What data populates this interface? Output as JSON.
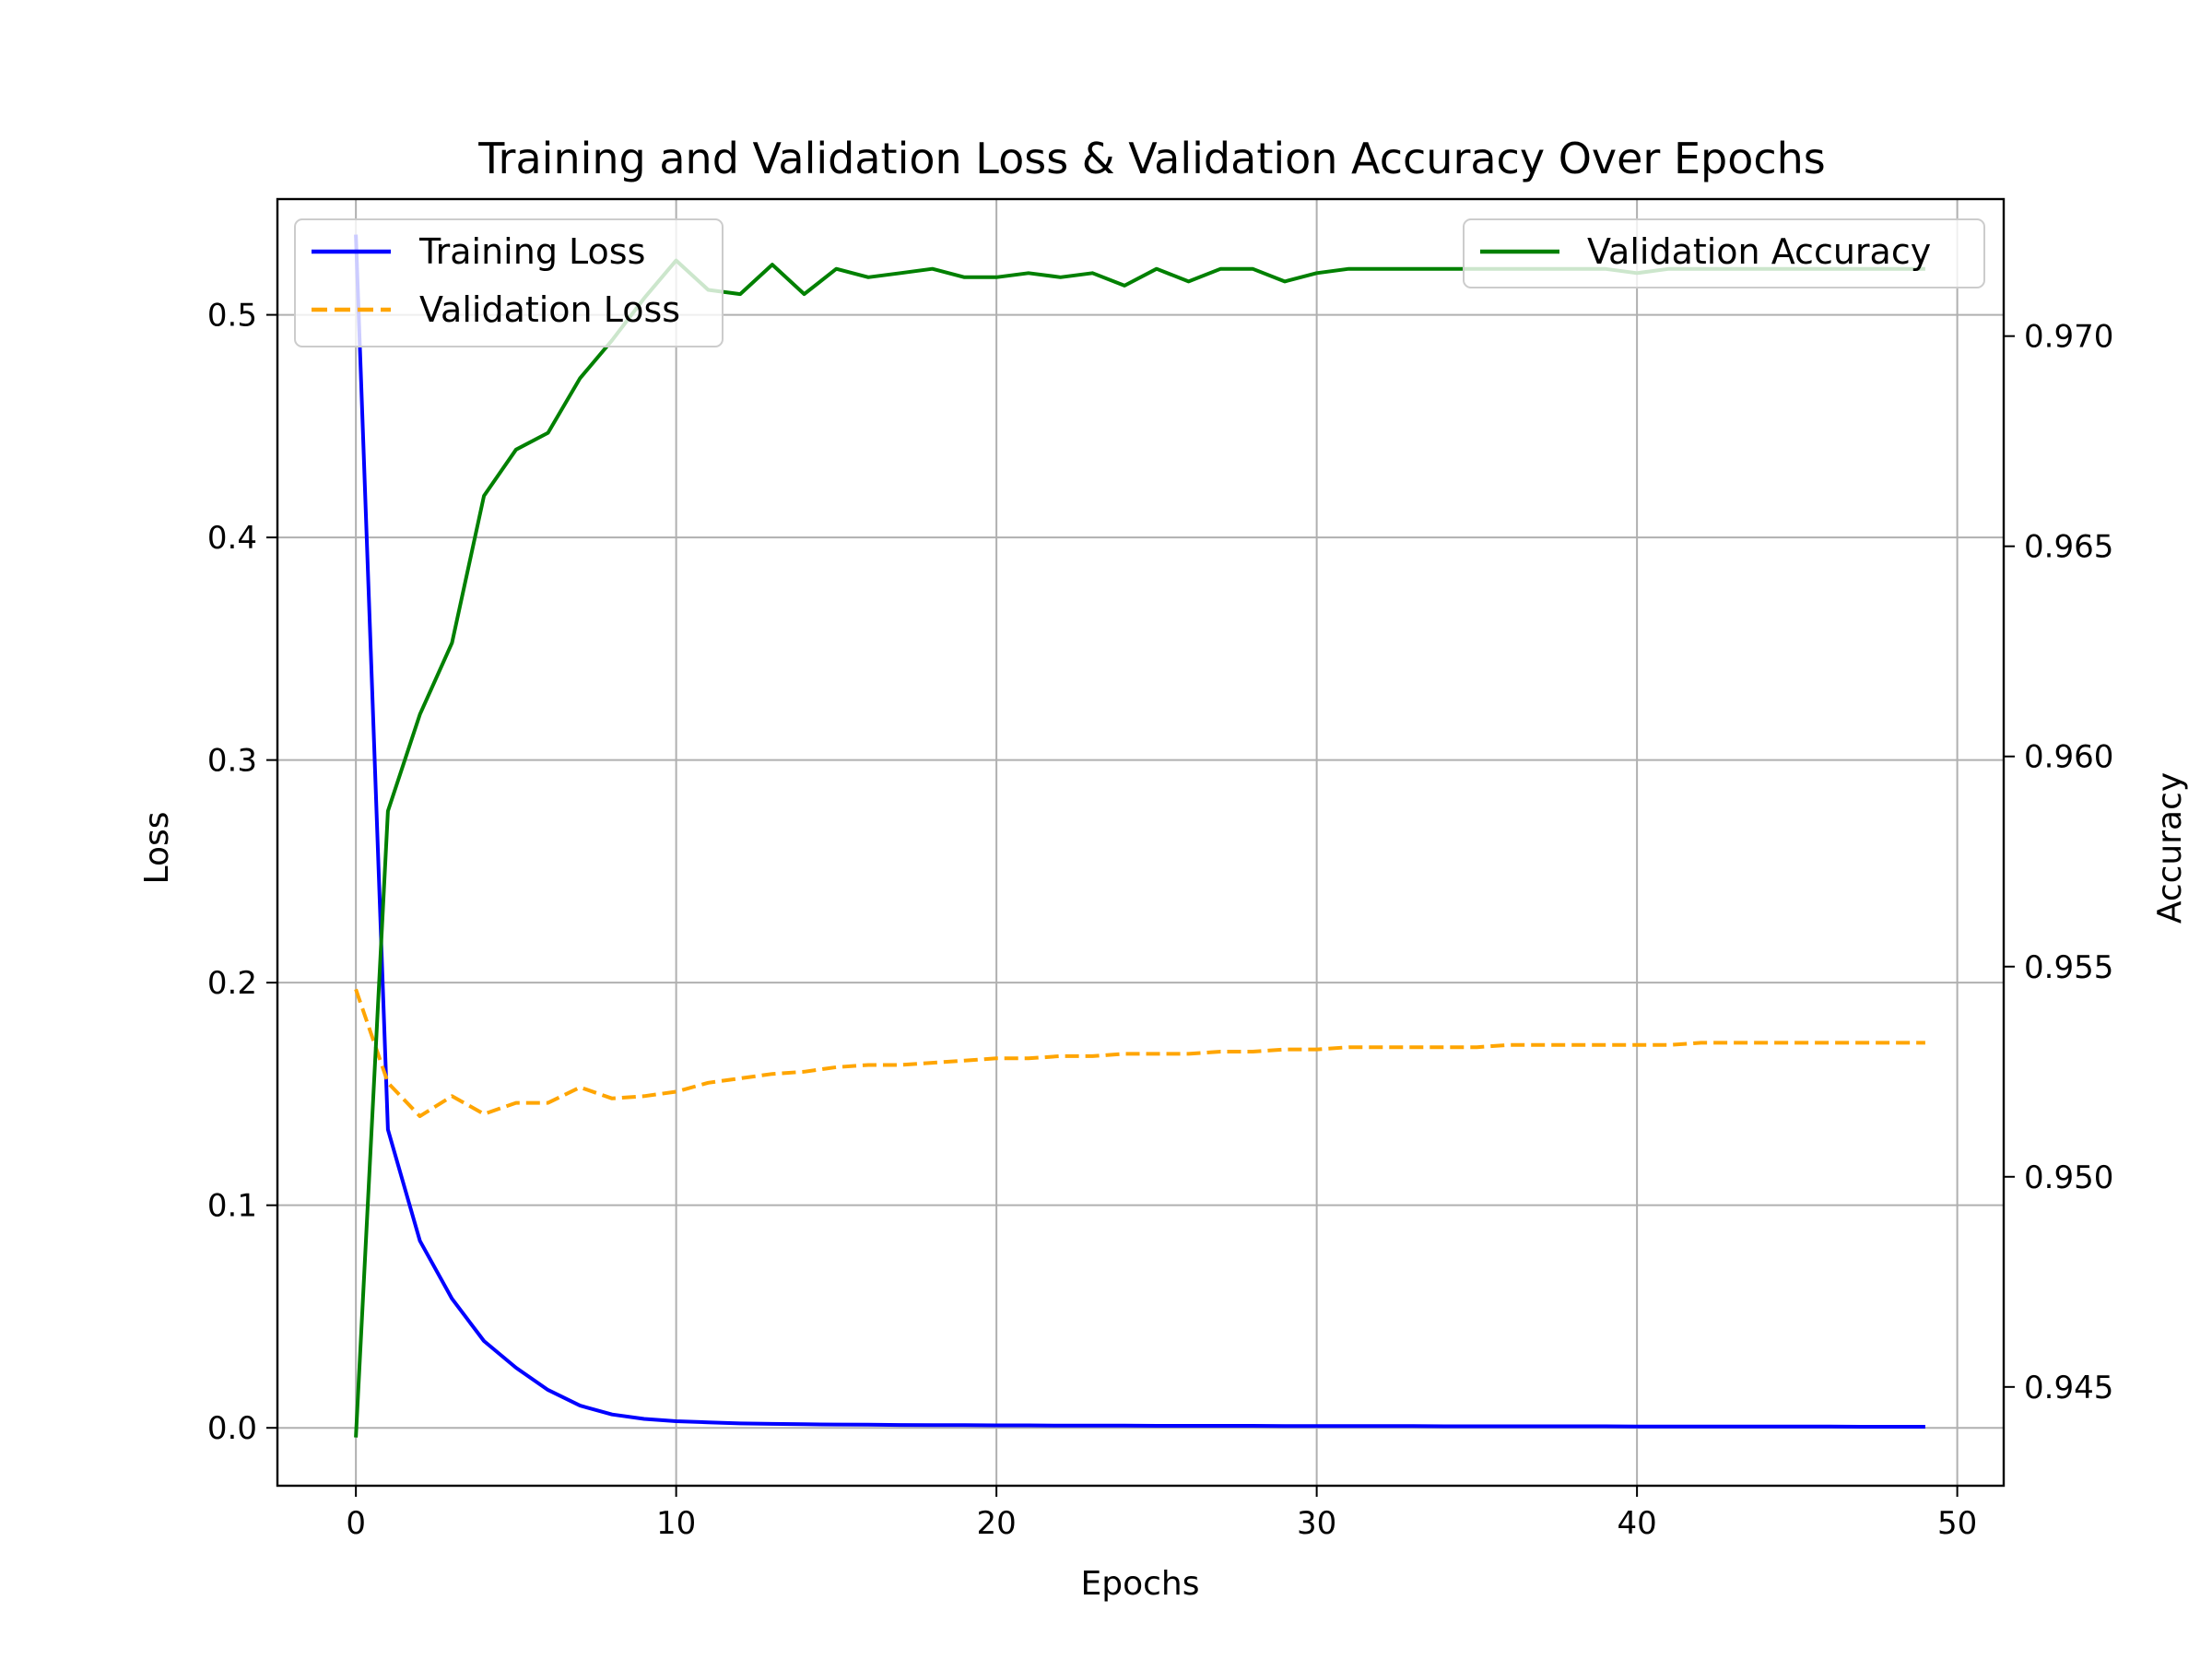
{
  "chart_data": {
    "type": "line",
    "title": "Training and Validation Loss & Validation Accuracy Over Epochs",
    "xlabel": "Epochs",
    "ylabel": "Loss",
    "y2label": "Accuracy",
    "xlim": [
      -2.45,
      51.45
    ],
    "ylim": [
      -0.026,
      0.552
    ],
    "y2lim": [
      0.94265,
      0.97326
    ],
    "xticks": [
      "0",
      "10",
      "20",
      "30",
      "40",
      "50"
    ],
    "yticks": [
      "0.0",
      "0.1",
      "0.2",
      "0.3",
      "0.4",
      "0.5"
    ],
    "y2ticks": [
      "0.945",
      "0.950",
      "0.955",
      "0.960",
      "0.965",
      "0.970"
    ],
    "grid": true,
    "x": [
      0,
      1,
      2,
      3,
      4,
      5,
      6,
      7,
      8,
      9,
      10,
      11,
      12,
      13,
      14,
      15,
      16,
      17,
      18,
      19,
      20,
      21,
      22,
      23,
      24,
      25,
      26,
      27,
      28,
      29,
      30,
      31,
      32,
      33,
      34,
      35,
      36,
      37,
      38,
      39,
      40,
      41,
      42,
      43,
      44,
      45,
      46,
      47,
      48,
      49
    ],
    "series": [
      {
        "name": "Training Loss",
        "axis": "left",
        "color": "#0000ff",
        "style": "solid",
        "values": [
          0.536,
          0.134,
          0.084,
          0.058,
          0.039,
          0.027,
          0.017,
          0.01,
          0.006,
          0.004,
          0.003,
          0.0025,
          0.002,
          0.0018,
          0.0016,
          0.0015,
          0.0014,
          0.0013,
          0.0012,
          0.0012,
          0.0011,
          0.0011,
          0.001,
          0.001,
          0.001,
          0.0009,
          0.0009,
          0.0009,
          0.0009,
          0.0008,
          0.0008,
          0.0008,
          0.0008,
          0.0008,
          0.0007,
          0.0007,
          0.0007,
          0.0007,
          0.0007,
          0.0007,
          0.0006,
          0.0006,
          0.0006,
          0.0006,
          0.0006,
          0.0006,
          0.0006,
          0.0005,
          0.0005,
          0.0005
        ]
      },
      {
        "name": "Validation Loss",
        "axis": "left",
        "color": "#ffa500",
        "style": "dashed",
        "values": [
          0.197,
          0.155,
          0.14,
          0.149,
          0.141,
          0.146,
          0.146,
          0.153,
          0.148,
          0.149,
          0.151,
          0.155,
          0.157,
          0.159,
          0.16,
          0.162,
          0.163,
          0.163,
          0.164,
          0.165,
          0.166,
          0.166,
          0.167,
          0.167,
          0.168,
          0.168,
          0.168,
          0.169,
          0.169,
          0.17,
          0.17,
          0.171,
          0.171,
          0.171,
          0.171,
          0.171,
          0.172,
          0.172,
          0.172,
          0.172,
          0.172,
          0.172,
          0.173,
          0.173,
          0.173,
          0.173,
          0.173,
          0.173,
          0.173,
          0.173
        ]
      },
      {
        "name": "Validation Accuracy",
        "axis": "right",
        "color": "#008000",
        "style": "solid",
        "values": [
          0.9438,
          0.9587,
          0.961,
          0.9627,
          0.9662,
          0.9673,
          0.9677,
          0.969,
          0.9699,
          0.9709,
          0.9718,
          0.9711,
          0.971,
          0.9717,
          0.971,
          0.9716,
          0.9714,
          0.9715,
          0.9716,
          0.9714,
          0.9714,
          0.9715,
          0.9714,
          0.9715,
          0.9712,
          0.9716,
          0.9713,
          0.9716,
          0.9716,
          0.9713,
          0.9715,
          0.9716,
          0.9716,
          0.9716,
          0.9716,
          0.9716,
          0.9716,
          0.9716,
          0.9716,
          0.9716,
          0.9715,
          0.9716,
          0.9716,
          0.9716,
          0.9716,
          0.9716,
          0.9716,
          0.9716,
          0.9716,
          0.9716
        ]
      }
    ],
    "legends": [
      {
        "placement": "upper-left",
        "entries": [
          "Training Loss",
          "Validation Loss"
        ]
      },
      {
        "placement": "upper-right",
        "entries": [
          "Validation Accuracy"
        ]
      }
    ]
  }
}
